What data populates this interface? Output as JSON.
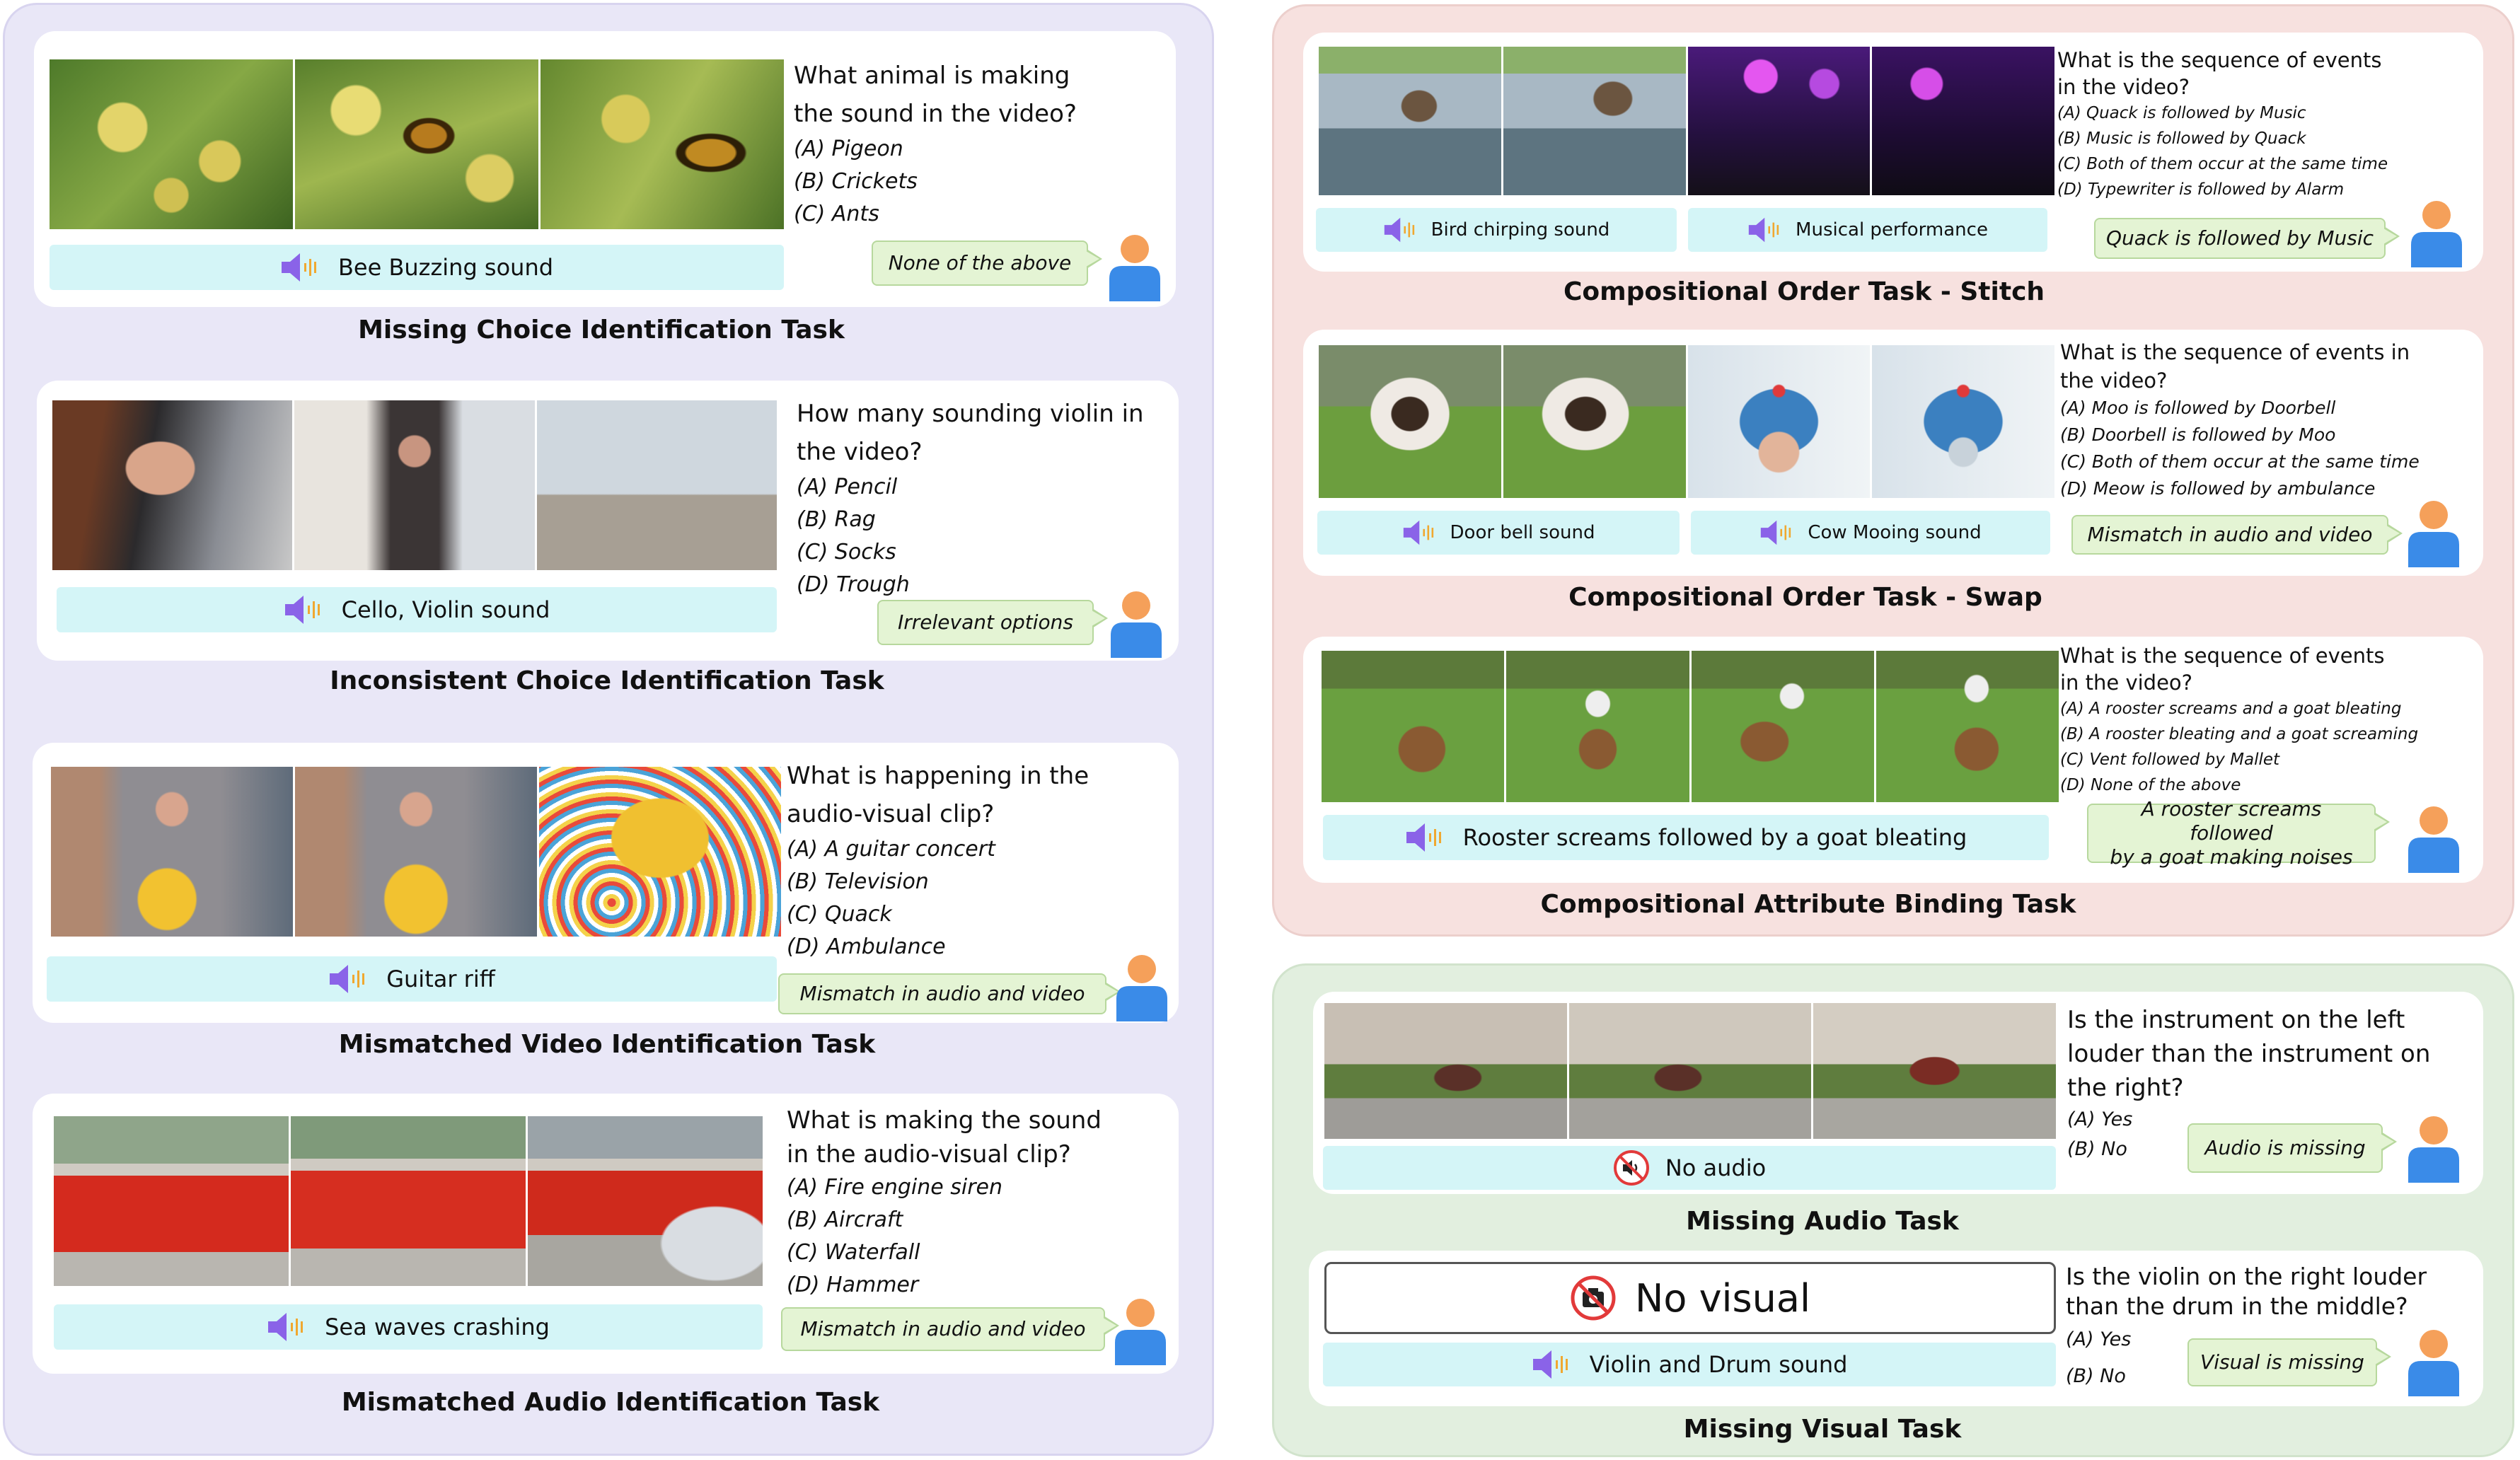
{
  "colors": {
    "purple_panel": "#e9e7f7",
    "pink_panel": "#f7e1df",
    "green_panel": "#e2efdf",
    "audio_bar": "#d4f5f7",
    "answer_bubble": "#e4f4d4",
    "speaker_icon": "#8a63e8",
    "wave_icon": "#f0a830",
    "user_head": "#f5a05a",
    "user_body": "#3a8be8",
    "no_icon_red": "#e23a3a"
  },
  "tasks": {
    "missing_choice": {
      "title": "Missing Choice Identification Task",
      "question": [
        "What animal is making",
        "the sound in the video?"
      ],
      "options": [
        "(A) Pigeon",
        "(B) Crickets",
        "(C) Ants"
      ],
      "audio": "Bee Buzzing sound",
      "answer": "None of the above",
      "frames": [
        "bee-frame",
        "bee-frame",
        "bee-frame"
      ]
    },
    "inconsistent_choice": {
      "title": "Inconsistent Choice Identification Task",
      "question": [
        "How many sounding violin in",
        "the video?"
      ],
      "options": [
        "(A) Pencil",
        "(B) Rag",
        "(C) Socks",
        "(D) Trough"
      ],
      "audio": "Cello, Violin sound",
      "answer": "Irrelevant options",
      "frames": [
        "violin-frame",
        "violin-frame",
        "violin-frame"
      ]
    },
    "mismatched_video": {
      "title": "Mismatched Video Identification Task",
      "question": [
        "What is happening in the",
        "audio-visual clip?"
      ],
      "options": [
        "(A) A guitar concert",
        "(B) Television",
        "(C) Quack",
        "(D) Ambulance"
      ],
      "audio": "Guitar riff",
      "answer": "Mismatch in audio and video",
      "frames": [
        "box-frame",
        "box-frame",
        "box-frame"
      ]
    },
    "mismatched_audio": {
      "title": "Mismatched Audio Identification Task",
      "question": [
        "What is making the sound",
        "in the audio-visual clip?"
      ],
      "options": [
        "(A) Fire engine siren",
        "(B) Aircraft",
        "(C) Waterfall",
        "(D) Hammer"
      ],
      "audio": "Sea waves crashing",
      "answer": "Mismatch in audio and video",
      "frames": [
        "firetruck-frame",
        "firetruck-frame",
        "firetruck-frame"
      ]
    },
    "order_stitch": {
      "title": "Compositional Order Task - Stitch",
      "question": [
        "What is the sequence of events",
        "in the video?"
      ],
      "options": [
        "(A) Quack is followed by Music",
        "(B) Music is followed by Quack",
        "(C) Both of them occur at the same time",
        "(D) Typewriter is followed by Alarm"
      ],
      "audio_left": "Bird chirping sound",
      "audio_right": "Musical performance",
      "answer": "Quack is followed by Music"
    },
    "order_swap": {
      "title": "Compositional Order Task - Swap",
      "question": [
        "What is the sequence of events in",
        "the video?"
      ],
      "options": [
        "(A) Moo is followed by Doorbell",
        "(B) Doorbell is followed by Moo",
        "(C) Both of them occur at the same time",
        "(D) Meow is followed by ambulance"
      ],
      "audio_left": "Door bell sound",
      "audio_right": "Cow Mooing sound",
      "answer": "Mismatch in audio and video"
    },
    "attribute_binding": {
      "title": "Compositional Attribute Binding Task",
      "question": [
        "What is the sequence of events",
        "in the video?"
      ],
      "options": [
        "(A) A rooster screams and a goat bleating",
        "(B) A rooster bleating and a goat screaming",
        "(C) Vent followed by Mallet",
        "(D) None of the above"
      ],
      "audio": "Rooster screams followed by a goat bleating",
      "answer": [
        "A rooster screams followed",
        "by a goat making noises"
      ]
    },
    "missing_audio": {
      "title": "Missing Audio Task",
      "question": [
        "Is the instrument on the left",
        "louder than the instrument on",
        "the right?"
      ],
      "options": [
        "(A) Yes",
        "(B) No"
      ],
      "audio": "No audio",
      "answer": "Audio is missing"
    },
    "missing_visual": {
      "title": "Missing Visual Task",
      "question": [
        "Is the violin on the right louder",
        "than the drum in the middle?"
      ],
      "options": [
        "(A) Yes",
        "(B) No"
      ],
      "visual": "No visual",
      "audio": "Violin and Drum sound",
      "answer": "Visual is missing"
    }
  }
}
